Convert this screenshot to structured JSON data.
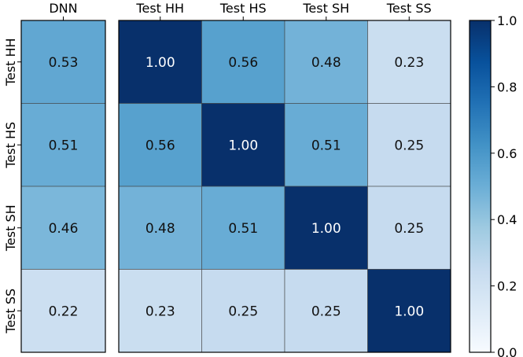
{
  "chart_data": [
    {
      "type": "heatmap",
      "title": "",
      "x_labels": [
        "DNN"
      ],
      "y_labels": [
        "Test HH",
        "Test HS",
        "Test SH",
        "Test SS"
      ],
      "values": [
        [
          0.53
        ],
        [
          0.51
        ],
        [
          0.46
        ],
        [
          0.22
        ]
      ],
      "value_range": [
        0.0,
        1.0
      ],
      "colormap": "Blues"
    },
    {
      "type": "heatmap",
      "title": "",
      "x_labels": [
        "Test HH",
        "Test HS",
        "Test SH",
        "Test SS"
      ],
      "y_labels": [
        "Test HH",
        "Test HS",
        "Test SH",
        "Test SS"
      ],
      "values": [
        [
          1.0,
          0.56,
          0.48,
          0.23
        ],
        [
          0.56,
          1.0,
          0.51,
          0.25
        ],
        [
          0.48,
          0.51,
          1.0,
          0.25
        ],
        [
          0.23,
          0.25,
          0.25,
          1.0
        ]
      ],
      "value_range": [
        0.0,
        1.0
      ],
      "colormap": "Blues"
    }
  ],
  "colorbar": {
    "range": [
      0.0,
      1.0
    ],
    "ticks": [
      "0.0",
      "0.2",
      "0.4",
      "0.6",
      "0.8",
      "1.0"
    ],
    "tick_values": [
      0.0,
      0.2,
      0.4,
      0.6,
      0.8,
      1.0
    ]
  }
}
